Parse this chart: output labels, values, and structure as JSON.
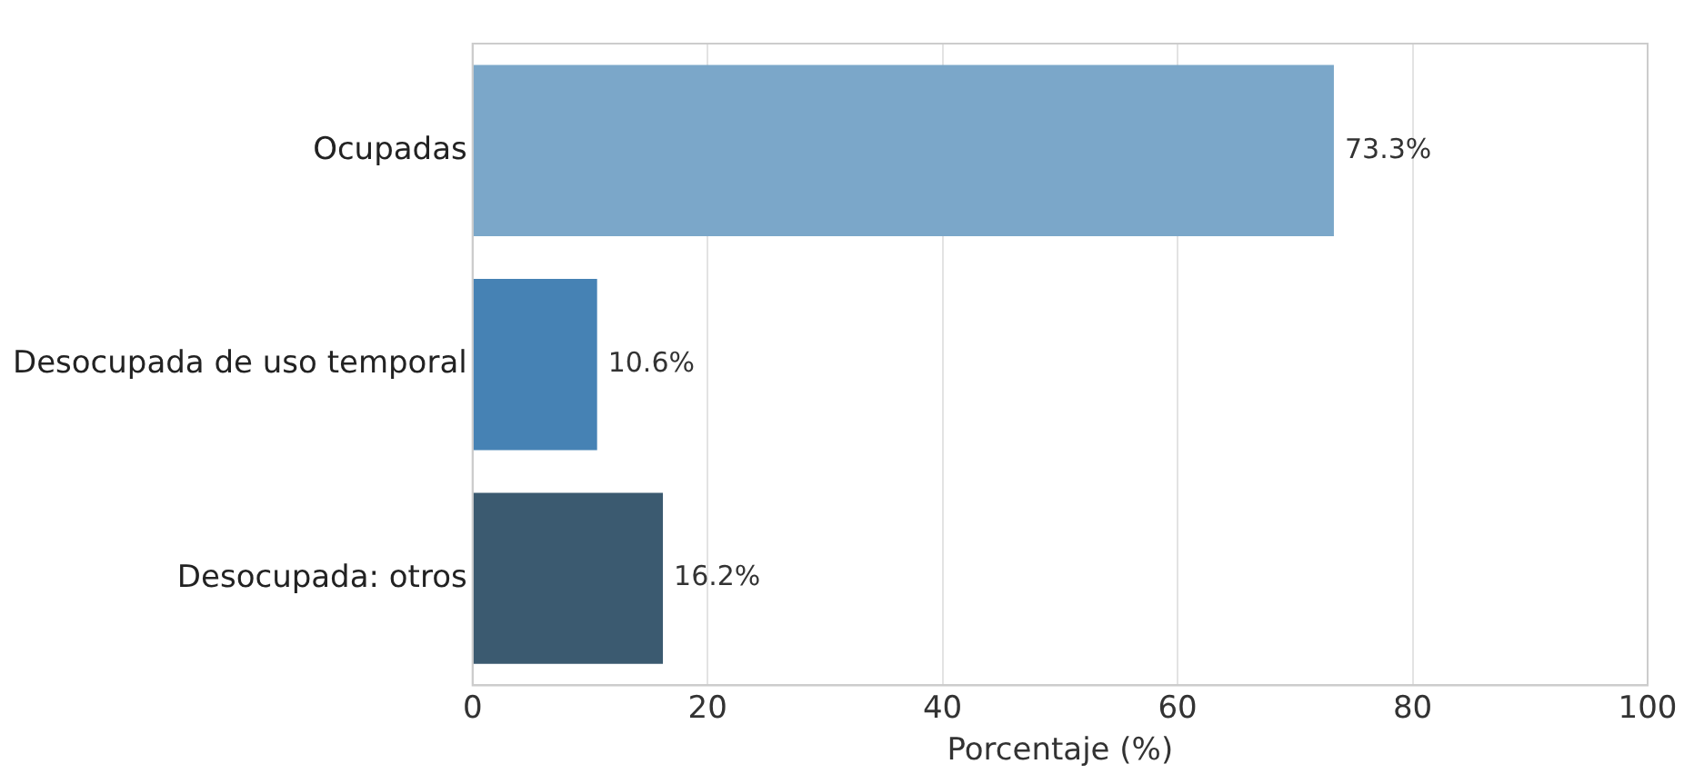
{
  "chart_data": {
    "type": "bar",
    "orientation": "horizontal",
    "xlabel": "Porcentaje (%)",
    "categories": [
      "Ocupadas",
      "Desocupada de uso temporal",
      "Desocupada: otros"
    ],
    "values": [
      73.3,
      10.6,
      16.2
    ],
    "colors": [
      "#7ba7c9",
      "#4682b4",
      "#3b5a70"
    ],
    "value_labels": [
      "73.3%",
      "10.6%",
      "16.2%"
    ],
    "xlim": [
      0,
      100
    ],
    "xticks": [
      0,
      20,
      40,
      60,
      80,
      100
    ],
    "grid": "x",
    "legend": false
  }
}
